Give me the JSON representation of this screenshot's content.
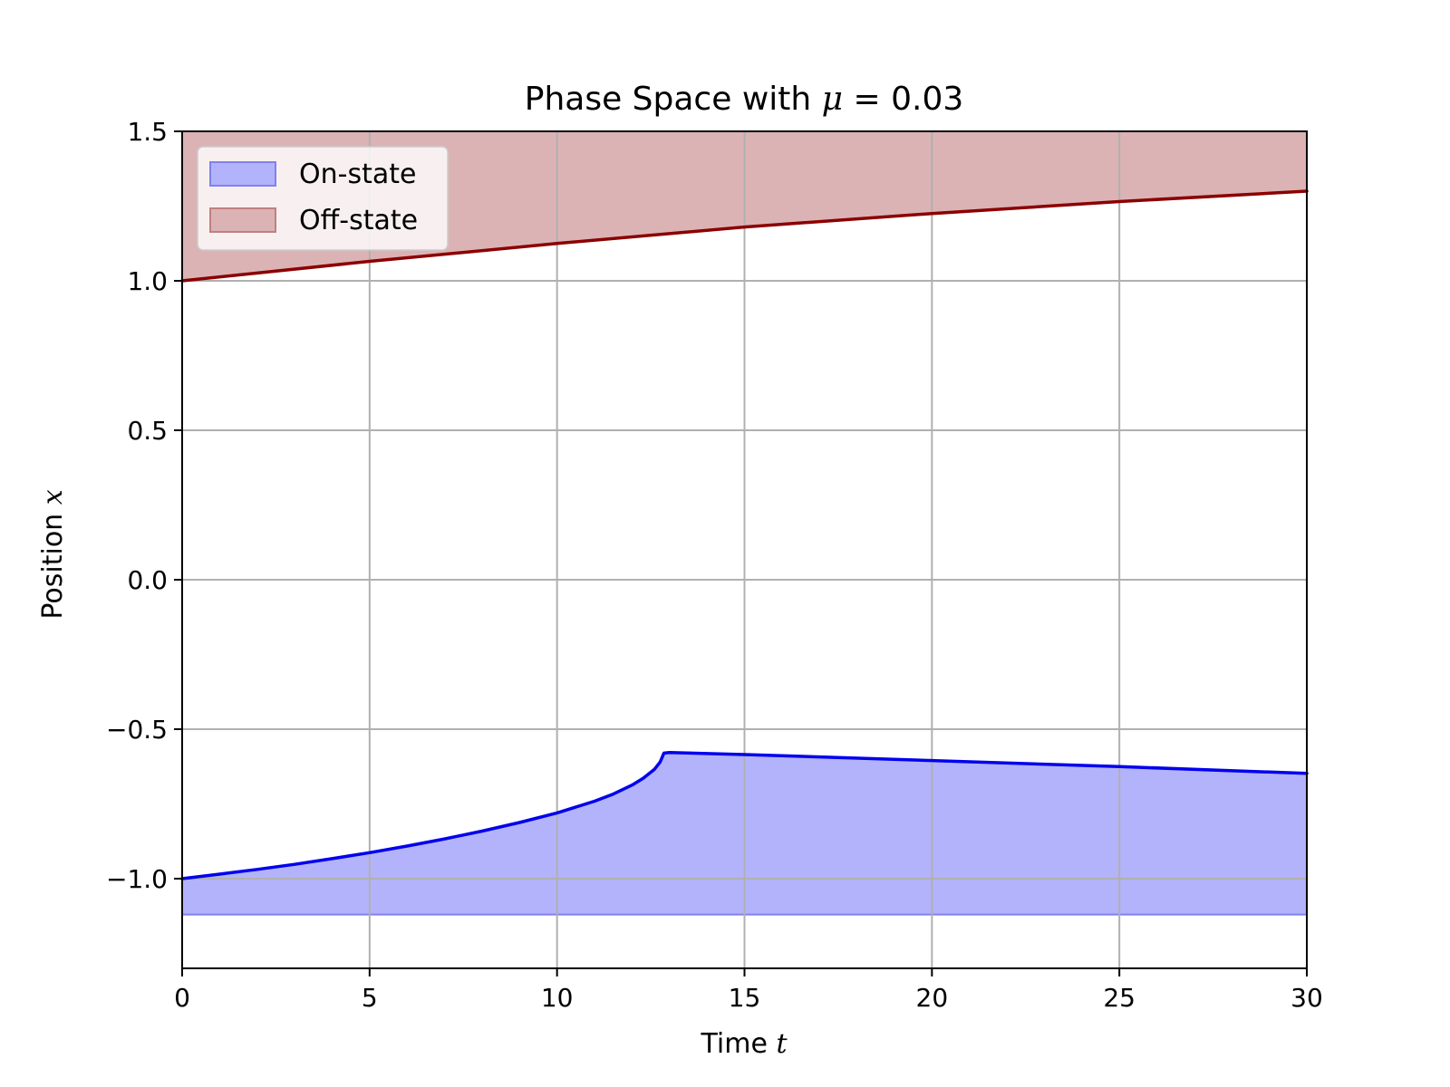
{
  "chart_data": {
    "type": "area",
    "title": {
      "prefix": "Phase Space with ",
      "symbol": "μ",
      "suffix": " = 0.03"
    },
    "xlabel": {
      "text": "Time ",
      "symbol": "t"
    },
    "ylabel": {
      "text": "Position ",
      "symbol": "x"
    },
    "xlim": [
      0,
      30
    ],
    "ylim": [
      -1.3,
      1.5
    ],
    "xticks": [
      0,
      5,
      10,
      15,
      20,
      25,
      30
    ],
    "xtick_labels": [
      "0",
      "5",
      "10",
      "15",
      "20",
      "25",
      "30"
    ],
    "yticks": [
      -1.0,
      -0.5,
      0.0,
      0.5,
      1.0,
      1.5
    ],
    "ytick_labels": [
      "−1.0",
      "−0.5",
      "0.0",
      "0.5",
      "1.0",
      "1.5"
    ],
    "grid": true,
    "legend_position": "upper-left",
    "series": [
      {
        "name": "On-state",
        "kind": "fill",
        "line_color": "#0000ee",
        "fill_color": "#b3b3fc",
        "edge_color": "#8080f0",
        "fill_bottom": -1.12,
        "x": [
          0,
          1,
          2,
          3,
          4,
          5,
          6,
          7,
          8,
          9,
          10,
          11,
          11.5,
          12,
          12.3,
          12.6,
          12.75,
          12.85,
          13,
          15,
          20,
          25,
          30
        ],
        "y": [
          -1.0,
          -0.985,
          -0.969,
          -0.952,
          -0.933,
          -0.913,
          -0.891,
          -0.867,
          -0.841,
          -0.812,
          -0.78,
          -0.741,
          -0.717,
          -0.687,
          -0.664,
          -0.634,
          -0.61,
          -0.58,
          -0.578,
          -0.585,
          -0.605,
          -0.625,
          -0.648
        ]
      },
      {
        "name": "Off-state",
        "kind": "fill",
        "line_color": "#8b0000",
        "fill_color": "#dcb3b5",
        "edge_color": "#c08080",
        "x": [
          0,
          5,
          10,
          15,
          20,
          25,
          30
        ],
        "y": [
          1.0,
          1.065,
          1.125,
          1.18,
          1.225,
          1.265,
          1.3
        ]
      }
    ]
  }
}
